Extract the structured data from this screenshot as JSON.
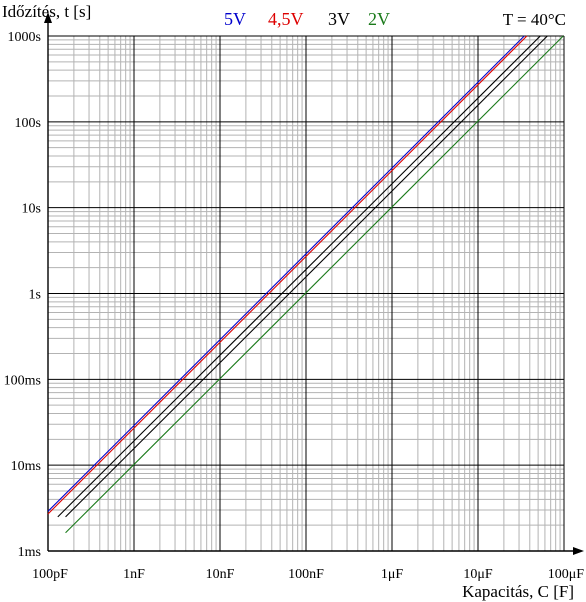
{
  "chart_data": {
    "type": "line",
    "x_scale": "log",
    "y_scale": "log",
    "ylabel": "Időzítés,  t [s]",
    "xlabel": "Kapacitás,  C [F]",
    "condition": "T = 40°C",
    "xlim": [
      1e-10,
      0.0001
    ],
    "ylim": [
      0.001,
      1000
    ],
    "x_ticks": [
      {
        "value": 1e-10,
        "label": "100pF"
      },
      {
        "value": 1e-09,
        "label": "1nF"
      },
      {
        "value": 1e-08,
        "label": "10nF"
      },
      {
        "value": 1e-07,
        "label": "100nF"
      },
      {
        "value": 1e-06,
        "label": "1μF"
      },
      {
        "value": 1e-05,
        "label": "10μF"
      },
      {
        "value": 0.0001,
        "label": "100μF"
      }
    ],
    "y_ticks": [
      {
        "value": 0.001,
        "label": "1ms"
      },
      {
        "value": 0.01,
        "label": "10ms"
      },
      {
        "value": 0.1,
        "label": "100ms"
      },
      {
        "value": 1,
        "label": "1s"
      },
      {
        "value": 10,
        "label": "10s"
      },
      {
        "value": 100,
        "label": "100s"
      },
      {
        "value": 1000,
        "label": "1000s"
      }
    ],
    "grid": true,
    "legend_position": "top",
    "series": [
      {
        "name": "5V",
        "color": "#0000cc",
        "x": [
          1e-10,
          3.45e-05
        ],
        "y": [
          0.0029,
          1000
        ]
      },
      {
        "name": "4,5V",
        "color": "#dd0000",
        "x": [
          1e-10,
          3.7e-05
        ],
        "y": [
          0.0027,
          1000
        ]
      },
      {
        "name": "3V",
        "color": "#000000",
        "x": [
          1.6e-10,
          6.4e-05
        ],
        "y": [
          0.0025,
          1000
        ]
      },
      {
        "name": "2V",
        "color": "#1a7a1a",
        "x": [
          1.6e-10,
          9.8e-05
        ],
        "y": [
          0.00163,
          1000
        ]
      }
    ],
    "extra_lines": [
      {
        "color": "#000000",
        "x": [
          1.3e-10,
          5.3e-05
        ],
        "y": [
          0.0025,
          1000
        ]
      }
    ]
  }
}
